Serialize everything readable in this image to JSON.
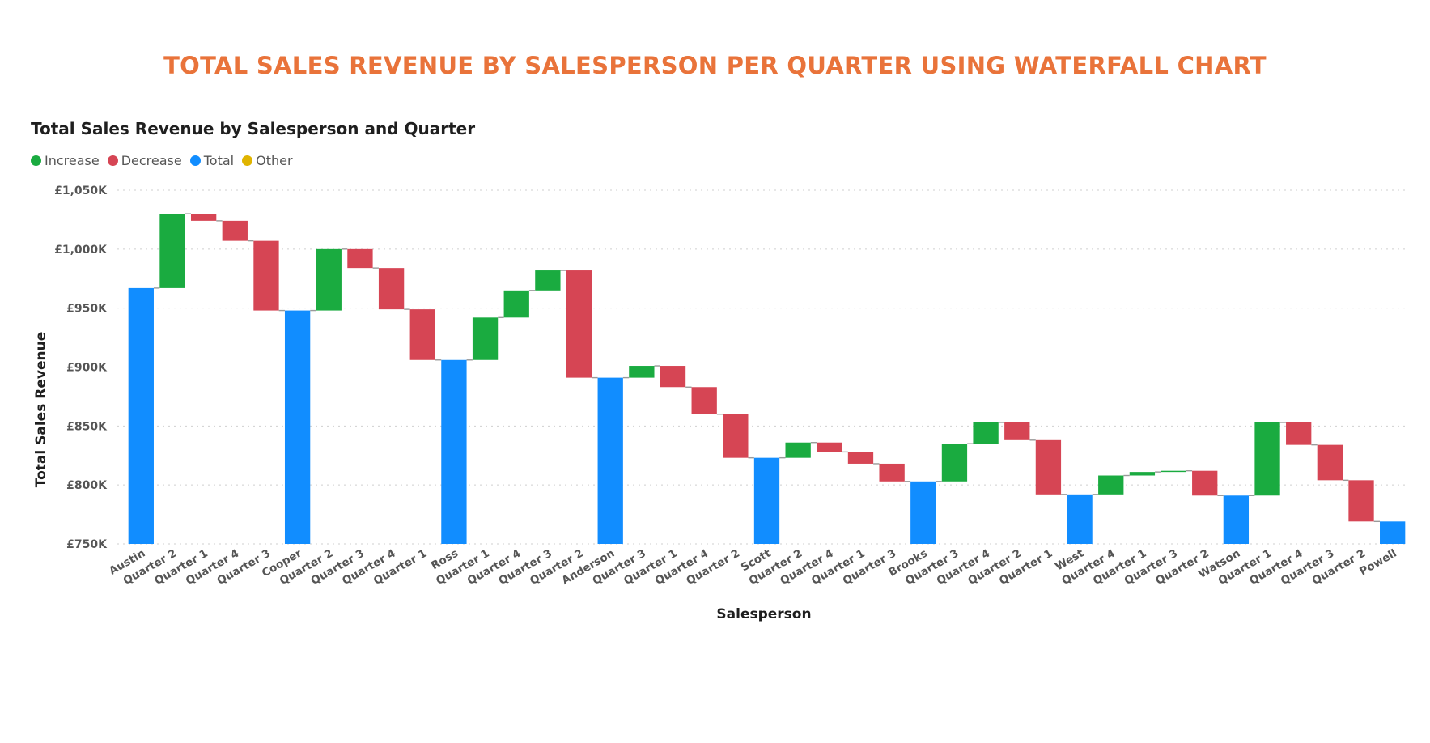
{
  "page": {
    "title": "TOTAL SALES REVENUE BY SALESPERSON PER QUARTER USING WATERFALL CHART",
    "title_color": "#e9733a"
  },
  "visual": {
    "title": "Total Sales Revenue by Salesperson and Quarter"
  },
  "legend": [
    {
      "label": "Increase",
      "color": "#1aab40"
    },
    {
      "label": "Decrease",
      "color": "#d64554"
    },
    {
      "label": "Total",
      "color": "#118dff"
    },
    {
      "label": "Other",
      "color": "#e0b400"
    }
  ],
  "chart_data": {
    "type": "waterfall",
    "xlabel": "Salesperson",
    "ylabel": "Total Sales Revenue",
    "ylim": [
      750,
      1050
    ],
    "y_unit": "£K",
    "y_ticks": [
      "£750K",
      "£800K",
      "£850K",
      "£900K",
      "£950K",
      "£1,000K",
      "£1,050K"
    ],
    "y_tick_values": [
      750,
      800,
      850,
      900,
      950,
      1000,
      1050
    ],
    "grid": true,
    "legend_position": "top-left",
    "bars": [
      {
        "label": "Austin",
        "kind": "total",
        "value": 967
      },
      {
        "label": "Quarter 2",
        "kind": "increase",
        "start": 967,
        "end": 1030
      },
      {
        "label": "Quarter 1",
        "kind": "decrease",
        "start": 1030,
        "end": 1024
      },
      {
        "label": "Quarter 4",
        "kind": "decrease",
        "start": 1024,
        "end": 1007
      },
      {
        "label": "Quarter 3",
        "kind": "decrease",
        "start": 1007,
        "end": 948
      },
      {
        "label": "Cooper",
        "kind": "total",
        "value": 948
      },
      {
        "label": "Quarter 2",
        "kind": "increase",
        "start": 948,
        "end": 1000
      },
      {
        "label": "Quarter 3",
        "kind": "decrease",
        "start": 1000,
        "end": 984
      },
      {
        "label": "Quarter 4",
        "kind": "decrease",
        "start": 984,
        "end": 949
      },
      {
        "label": "Quarter 1",
        "kind": "decrease",
        "start": 949,
        "end": 906
      },
      {
        "label": "Ross",
        "kind": "total",
        "value": 906
      },
      {
        "label": "Quarter 1",
        "kind": "increase",
        "start": 906,
        "end": 942
      },
      {
        "label": "Quarter 4",
        "kind": "increase",
        "start": 942,
        "end": 965
      },
      {
        "label": "Quarter 3",
        "kind": "increase",
        "start": 965,
        "end": 982
      },
      {
        "label": "Quarter 2",
        "kind": "decrease",
        "start": 982,
        "end": 891
      },
      {
        "label": "Anderson",
        "kind": "total",
        "value": 891
      },
      {
        "label": "Quarter 3",
        "kind": "increase",
        "start": 891,
        "end": 901
      },
      {
        "label": "Quarter 1",
        "kind": "decrease",
        "start": 901,
        "end": 883
      },
      {
        "label": "Quarter 4",
        "kind": "decrease",
        "start": 883,
        "end": 860
      },
      {
        "label": "Quarter 2",
        "kind": "decrease",
        "start": 860,
        "end": 823
      },
      {
        "label": "Scott",
        "kind": "total",
        "value": 823
      },
      {
        "label": "Quarter 2",
        "kind": "increase",
        "start": 823,
        "end": 836
      },
      {
        "label": "Quarter 4",
        "kind": "decrease",
        "start": 836,
        "end": 828
      },
      {
        "label": "Quarter 1",
        "kind": "decrease",
        "start": 828,
        "end": 818
      },
      {
        "label": "Quarter 3",
        "kind": "decrease",
        "start": 818,
        "end": 803
      },
      {
        "label": "Brooks",
        "kind": "total",
        "value": 803
      },
      {
        "label": "Quarter 3",
        "kind": "increase",
        "start": 803,
        "end": 835
      },
      {
        "label": "Quarter 4",
        "kind": "increase",
        "start": 835,
        "end": 853
      },
      {
        "label": "Quarter 2",
        "kind": "decrease",
        "start": 853,
        "end": 838
      },
      {
        "label": "Quarter 1",
        "kind": "decrease",
        "start": 838,
        "end": 792
      },
      {
        "label": "West",
        "kind": "total",
        "value": 792
      },
      {
        "label": "Quarter 4",
        "kind": "increase",
        "start": 792,
        "end": 808
      },
      {
        "label": "Quarter 1",
        "kind": "increase",
        "start": 808,
        "end": 811
      },
      {
        "label": "Quarter 3",
        "kind": "increase",
        "start": 811,
        "end": 812
      },
      {
        "label": "Quarter 2",
        "kind": "decrease",
        "start": 812,
        "end": 791
      },
      {
        "label": "Watson",
        "kind": "total",
        "value": 791
      },
      {
        "label": "Quarter 1",
        "kind": "increase",
        "start": 791,
        "end": 853
      },
      {
        "label": "Quarter 4",
        "kind": "decrease",
        "start": 853,
        "end": 834
      },
      {
        "label": "Quarter 3",
        "kind": "decrease",
        "start": 834,
        "end": 804
      },
      {
        "label": "Quarter 2",
        "kind": "decrease",
        "start": 804,
        "end": 769
      },
      {
        "label": "Powell",
        "kind": "total",
        "value": 769
      }
    ]
  }
}
